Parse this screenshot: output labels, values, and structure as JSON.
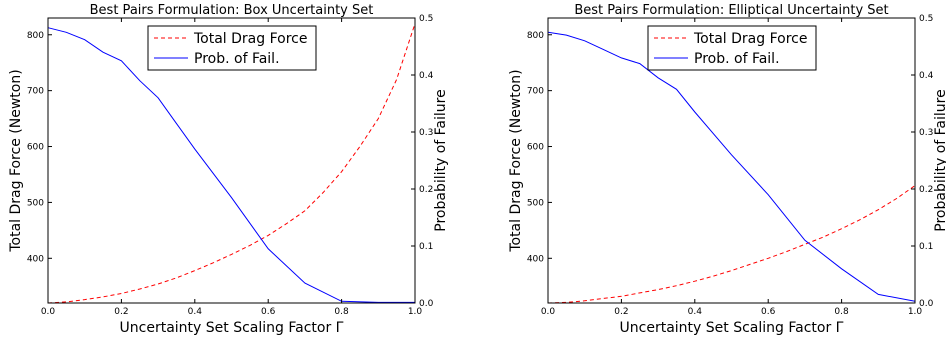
{
  "chart_data": [
    {
      "type": "line",
      "title": "Best Pairs Formulation: Box Uncertainty Set",
      "xlabel": "Uncertainty Set Scaling Factor Γ",
      "ylabel": "Total Drag Force  (Newton)",
      "y2label": "Probability of Failure",
      "xlim": [
        0.0,
        1.0
      ],
      "ylim": [
        320,
        830
      ],
      "y2lim": [
        0.0,
        0.5
      ],
      "xticks": [
        "0.0",
        "0.2",
        "0.4",
        "0.6",
        "0.8",
        "1.0"
      ],
      "yticks": [
        "400",
        "500",
        "600",
        "700",
        "800"
      ],
      "y2ticks": [
        "0.0",
        "0.1",
        "0.2",
        "0.3",
        "0.4",
        "0.5"
      ],
      "grid": false,
      "legend_position": "top-center",
      "series": [
        {
          "name": "Total Drag Force",
          "axis": "left",
          "color": "#ff0000",
          "style": "dashed",
          "x": [
            0.0,
            0.05,
            0.1,
            0.15,
            0.2,
            0.25,
            0.3,
            0.35,
            0.4,
            0.45,
            0.5,
            0.55,
            0.6,
            0.65,
            0.7,
            0.75,
            0.8,
            0.85,
            0.9,
            0.95,
            1.0
          ],
          "y": [
            320,
            322,
            326,
            331,
            337,
            345,
            354,
            365,
            378,
            392,
            407,
            423,
            441,
            462,
            485,
            518,
            555,
            600,
            650,
            720,
            820
          ]
        },
        {
          "name": "Prob. of Fail.",
          "axis": "right",
          "color": "#0000ff",
          "style": "solid",
          "x": [
            0.0,
            0.05,
            0.1,
            0.15,
            0.2,
            0.25,
            0.3,
            0.35,
            0.4,
            0.5,
            0.6,
            0.7,
            0.8,
            0.9,
            1.0
          ],
          "y": [
            0.483,
            0.475,
            0.462,
            0.44,
            0.425,
            0.39,
            0.36,
            0.315,
            0.27,
            0.185,
            0.095,
            0.035,
            0.003,
            0.001,
            0.001
          ]
        }
      ]
    },
    {
      "type": "line",
      "title": "Best Pairs Formulation: Elliptical Uncertainty Set",
      "xlabel": "Uncertainty Set Scaling Factor Γ",
      "ylabel": "Total Drag Force  (Newton)",
      "y2label": "Probability of Failure",
      "xlim": [
        0.0,
        1.0
      ],
      "ylim": [
        320,
        830
      ],
      "y2lim": [
        0.0,
        0.5
      ],
      "xticks": [
        "0.0",
        "0.2",
        "0.4",
        "0.6",
        "0.8",
        "1.0"
      ],
      "yticks": [
        "400",
        "500",
        "600",
        "700",
        "800"
      ],
      "y2ticks": [
        "0.0",
        "0.1",
        "0.2",
        "0.3",
        "0.4",
        "0.5"
      ],
      "grid": false,
      "legend_position": "top-center",
      "series": [
        {
          "name": "Total Drag Force",
          "axis": "left",
          "color": "#ff0000",
          "style": "dashed",
          "x": [
            0.0,
            0.05,
            0.1,
            0.15,
            0.2,
            0.25,
            0.3,
            0.35,
            0.4,
            0.45,
            0.5,
            0.55,
            0.6,
            0.65,
            0.7,
            0.75,
            0.8,
            0.85,
            0.9,
            0.95,
            1.0
          ],
          "y": [
            320,
            321,
            324,
            328,
            332,
            338,
            344,
            351,
            359,
            368,
            378,
            389,
            400,
            412,
            425,
            438,
            453,
            469,
            487,
            507,
            530
          ]
        },
        {
          "name": "Prob. of Fail.",
          "axis": "right",
          "color": "#0000ff",
          "style": "solid",
          "x": [
            0.0,
            0.05,
            0.1,
            0.15,
            0.2,
            0.25,
            0.3,
            0.35,
            0.4,
            0.5,
            0.6,
            0.7,
            0.8,
            0.9,
            1.0
          ],
          "y": [
            0.475,
            0.47,
            0.46,
            0.445,
            0.43,
            0.42,
            0.395,
            0.375,
            0.335,
            0.26,
            0.19,
            0.11,
            0.06,
            0.015,
            0.003
          ]
        }
      ]
    }
  ]
}
